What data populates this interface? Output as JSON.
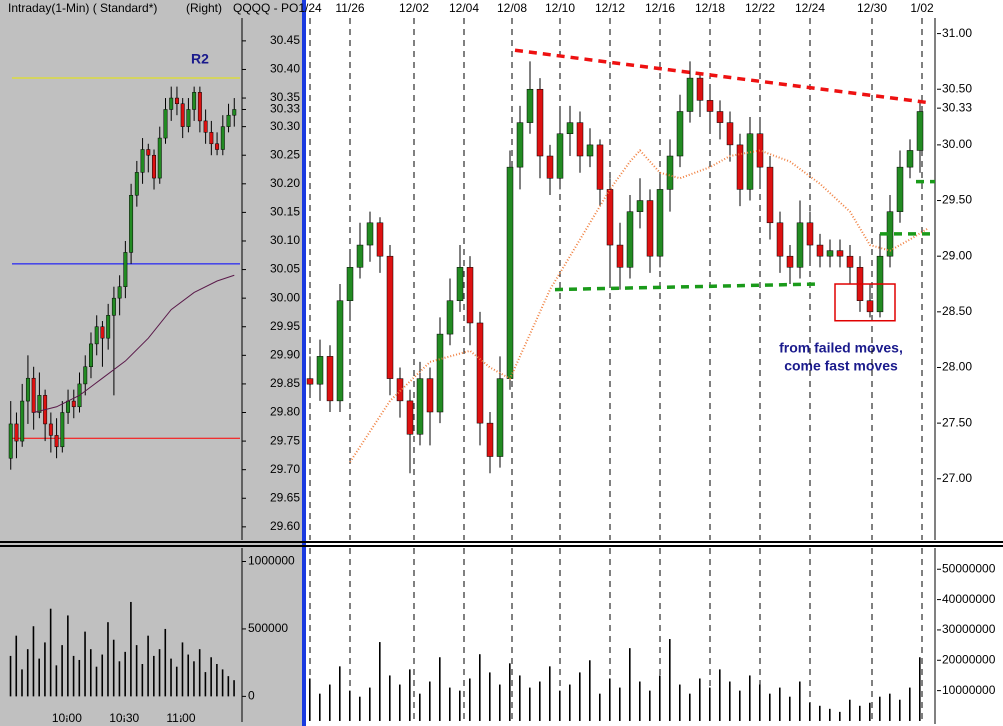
{
  "chart_data": [
    {
      "type": "candlestick",
      "header": [
        "Intraday(1-Min) ( Standard*)",
        "(Right)",
        "QQQQ - PO"
      ],
      "annotation": "R2",
      "ylim": [
        29.577,
        30.49
      ],
      "yticks": [
        30.45,
        {
          "value": 30.4,
          "label": "30.40"
        },
        30.35,
        30.33,
        {
          "value": 30.3,
          "label": "30.30"
        },
        30.25,
        {
          "value": 30.2,
          "label": "30.20"
        },
        30.15,
        {
          "value": 30.1,
          "label": "30.10"
        },
        30.05,
        {
          "value": 30.0,
          "label": "30.00"
        },
        29.95,
        {
          "value": 29.9,
          "label": "29.90"
        },
        29.85,
        {
          "value": 29.8,
          "label": "29.80"
        },
        29.75,
        {
          "value": 29.7,
          "label": "29.70"
        },
        29.65,
        {
          "value": 29.6,
          "label": "29.60"
        }
      ],
      "xlim": [
        -1,
        40
      ],
      "up_color": "#228b22",
      "down_color": "#dd1111",
      "candles": [
        [
          29.72,
          29.82,
          29.7,
          29.78
        ],
        [
          29.78,
          29.8,
          29.72,
          29.75
        ],
        [
          29.75,
          29.85,
          29.74,
          29.82
        ],
        [
          29.82,
          29.9,
          29.78,
          29.86
        ],
        [
          29.86,
          29.88,
          29.77,
          29.8
        ],
        [
          29.8,
          29.87,
          29.79,
          29.83
        ],
        [
          29.83,
          29.84,
          29.75,
          29.78
        ],
        [
          29.78,
          29.8,
          29.73,
          29.76
        ],
        [
          29.76,
          29.79,
          29.72,
          29.74
        ],
        [
          29.74,
          29.82,
          29.73,
          29.8
        ],
        [
          29.8,
          29.84,
          29.78,
          29.82
        ],
        [
          29.82,
          29.84,
          29.79,
          29.81
        ],
        [
          29.81,
          29.87,
          29.8,
          29.85
        ],
        [
          29.85,
          29.9,
          29.83,
          29.88
        ],
        [
          29.88,
          29.94,
          29.86,
          29.92
        ],
        [
          29.92,
          29.97,
          29.9,
          29.95
        ],
        [
          29.95,
          29.96,
          29.88,
          29.93
        ],
        [
          29.93,
          29.99,
          29.91,
          29.97
        ],
        [
          29.97,
          30.02,
          29.83,
          30.0
        ],
        [
          30.0,
          30.04,
          29.97,
          30.02
        ],
        [
          30.02,
          30.1,
          30.0,
          30.08
        ],
        [
          30.08,
          30.2,
          30.06,
          30.18
        ],
        [
          30.18,
          30.24,
          30.16,
          30.22
        ],
        [
          30.22,
          30.28,
          30.2,
          30.26
        ],
        [
          30.26,
          30.27,
          30.22,
          30.25
        ],
        [
          30.25,
          30.26,
          30.19,
          30.21
        ],
        [
          30.21,
          30.3,
          30.2,
          30.28
        ],
        [
          30.28,
          30.35,
          30.27,
          30.33
        ],
        [
          30.33,
          30.37,
          30.31,
          30.35
        ],
        [
          30.35,
          30.37,
          30.32,
          30.34
        ],
        [
          30.34,
          30.35,
          30.28,
          30.3
        ],
        [
          30.3,
          30.35,
          30.29,
          30.33
        ],
        [
          30.33,
          30.37,
          30.31,
          30.36
        ],
        [
          30.36,
          30.37,
          30.29,
          30.31
        ],
        [
          30.31,
          30.33,
          30.27,
          30.29
        ],
        [
          30.29,
          30.31,
          30.25,
          30.27
        ],
        [
          30.27,
          30.29,
          30.25,
          30.26
        ],
        [
          30.26,
          30.32,
          30.25,
          30.3
        ],
        [
          30.3,
          30.34,
          30.29,
          30.32
        ],
        [
          30.32,
          30.35,
          30.3,
          30.33
        ]
      ],
      "levels": [
        {
          "value": 30.385,
          "color": "#e8e800"
        },
        {
          "value": 30.06,
          "color": "#0000ff"
        },
        {
          "value": 29.755,
          "color": "#ff0000"
        }
      ],
      "lines": [
        {
          "color": "#5a1a4a",
          "style": "solid",
          "x": [
            4,
            8,
            12,
            16,
            20,
            24,
            28,
            32,
            36,
            39
          ],
          "values": [
            29.8,
            29.81,
            29.83,
            29.86,
            29.89,
            29.93,
            29.98,
            30.01,
            30.03,
            30.04
          ]
        }
      ]
    },
    {
      "type": "volume",
      "ylim": [
        -190000,
        1100000
      ],
      "yticks": [
        0,
        500000,
        1000000
      ],
      "xlim": [
        -1,
        40
      ],
      "xticks": [
        {
          "value": 9.8,
          "label": "10:00"
        },
        {
          "value": 19.8,
          "label": "10:30"
        },
        {
          "value": 29.7,
          "label": "11:00"
        }
      ],
      "color": "#000000",
      "values": [
        300000,
        450000,
        200000,
        350000,
        520000,
        280000,
        400000,
        650000,
        230000,
        380000,
        600000,
        300000,
        270000,
        480000,
        350000,
        220000,
        310000,
        550000,
        420000,
        260000,
        330000,
        700000,
        380000,
        240000,
        450000,
        300000,
        350000,
        500000,
        280000,
        220000,
        400000,
        310000,
        260000,
        350000,
        180000,
        290000,
        240000,
        200000,
        150000,
        120000
      ]
    },
    {
      "type": "candlestick",
      "annotation": [
        "from failed moves,",
        "come fast moves"
      ],
      "ylim": [
        26.45,
        31.14
      ],
      "yticks": [
        {
          "value": 31,
          "label": "31.00"
        },
        {
          "value": 30.5,
          "label": "30.50"
        },
        30.33,
        {
          "value": 30,
          "label": "30.00"
        },
        {
          "value": 29.5,
          "label": "29.50"
        },
        {
          "value": 29,
          "label": "29.00"
        },
        {
          "value": 28.5,
          "label": "28.50"
        },
        {
          "value": 28,
          "label": "28.00"
        },
        {
          "value": 27.5,
          "label": "27.50"
        },
        {
          "value": 27,
          "label": "27.00"
        }
      ],
      "xlim": [
        -0.5,
        62.5
      ],
      "xticks": [
        {
          "value": 0,
          "label": "1/24"
        },
        {
          "value": 4,
          "label": "11/26"
        },
        {
          "value": 10.4,
          "label": "12/02"
        },
        {
          "value": 15.4,
          "label": "12/04"
        },
        {
          "value": 20.2,
          "label": "12/08"
        },
        {
          "value": 25,
          "label": "12/10"
        },
        {
          "value": 30,
          "label": "12/12"
        },
        {
          "value": 35,
          "label": "12/16"
        },
        {
          "value": 40,
          "label": "12/18"
        },
        {
          "value": 45,
          "label": "12/22"
        },
        {
          "value": 50,
          "label": "12/24"
        },
        {
          "value": 56.2,
          "label": "12/30"
        },
        {
          "value": 61.2,
          "label": "1/02"
        }
      ],
      "up_color": "#228b22",
      "down_color": "#dd1111",
      "candles": [
        [
          27.9,
          28.1,
          27.75,
          27.85
        ],
        [
          27.85,
          28.25,
          27.7,
          28.1
        ],
        [
          28.1,
          28.2,
          27.6,
          27.7
        ],
        [
          27.7,
          28.75,
          27.6,
          28.6
        ],
        [
          28.6,
          29.05,
          28.45,
          28.9
        ],
        [
          28.9,
          29.3,
          28.8,
          29.1
        ],
        [
          29.1,
          29.4,
          28.95,
          29.3
        ],
        [
          29.3,
          29.35,
          28.85,
          29.0
        ],
        [
          29.0,
          29.1,
          27.75,
          27.9
        ],
        [
          27.9,
          28.0,
          27.55,
          27.7
        ],
        [
          27.7,
          27.8,
          27.05,
          27.4
        ],
        [
          27.4,
          28.05,
          27.3,
          27.9
        ],
        [
          27.9,
          28.0,
          27.3,
          27.6
        ],
        [
          27.6,
          28.45,
          27.5,
          28.3
        ],
        [
          28.3,
          28.8,
          28.2,
          28.6
        ],
        [
          28.6,
          29.1,
          28.5,
          28.9
        ],
        [
          28.9,
          29.0,
          28.2,
          28.4
        ],
        [
          28.4,
          28.5,
          27.3,
          27.5
        ],
        [
          27.5,
          27.6,
          27.05,
          27.2
        ],
        [
          27.2,
          28.1,
          27.1,
          27.9
        ],
        [
          27.9,
          29.95,
          27.8,
          29.8
        ],
        [
          29.8,
          30.35,
          29.6,
          30.2
        ],
        [
          30.2,
          30.75,
          30.1,
          30.5
        ],
        [
          30.5,
          30.6,
          29.7,
          29.9
        ],
        [
          29.9,
          30.0,
          29.55,
          29.7
        ],
        [
          29.7,
          30.3,
          29.6,
          30.1
        ],
        [
          30.1,
          30.35,
          29.9,
          30.2
        ],
        [
          30.2,
          30.3,
          29.75,
          29.9
        ],
        [
          29.9,
          30.15,
          29.8,
          30.0
        ],
        [
          30.0,
          30.05,
          29.45,
          29.6
        ],
        [
          29.6,
          29.7,
          28.75,
          29.1
        ],
        [
          29.1,
          29.3,
          28.7,
          28.9
        ],
        [
          28.9,
          29.55,
          28.8,
          29.4
        ],
        [
          29.4,
          29.7,
          29.25,
          29.5
        ],
        [
          29.5,
          29.6,
          28.85,
          29.0
        ],
        [
          29.0,
          29.75,
          28.9,
          29.6
        ],
        [
          29.6,
          30.05,
          29.4,
          29.9
        ],
        [
          29.9,
          30.45,
          29.8,
          30.3
        ],
        [
          30.3,
          30.75,
          30.2,
          30.6
        ],
        [
          30.6,
          30.65,
          30.25,
          30.4
        ],
        [
          30.4,
          30.5,
          30.15,
          30.3
        ],
        [
          30.3,
          30.4,
          30.05,
          30.2
        ],
        [
          30.2,
          30.3,
          29.85,
          30.0
        ],
        [
          30.0,
          30.1,
          29.45,
          29.6
        ],
        [
          29.6,
          30.25,
          29.5,
          30.1
        ],
        [
          30.1,
          30.2,
          29.65,
          29.8
        ],
        [
          29.8,
          29.9,
          29.15,
          29.3
        ],
        [
          29.3,
          29.4,
          28.85,
          29.0
        ],
        [
          29.0,
          29.1,
          28.75,
          28.9
        ],
        [
          28.9,
          29.5,
          28.8,
          29.3
        ],
        [
          29.3,
          29.4,
          28.95,
          29.1
        ],
        [
          29.1,
          29.2,
          28.9,
          29.0
        ],
        [
          29.0,
          29.15,
          28.9,
          29.05
        ],
        [
          29.05,
          29.15,
          28.9,
          29.0
        ],
        [
          29.0,
          29.1,
          28.75,
          28.9
        ],
        [
          28.9,
          29.0,
          28.5,
          28.6
        ],
        [
          28.6,
          28.75,
          28.45,
          28.5
        ],
        [
          28.5,
          29.2,
          28.45,
          29.0
        ],
        [
          29.0,
          29.55,
          28.9,
          29.4
        ],
        [
          29.4,
          29.95,
          29.3,
          29.8
        ],
        [
          29.8,
          30.05,
          29.7,
          29.95
        ],
        [
          29.95,
          30.4,
          29.75,
          30.3
        ]
      ],
      "lines": [
        {
          "color": "#f08040",
          "style": "dotted",
          "x": [
            4,
            8,
            12,
            14,
            16,
            18,
            20,
            24,
            28,
            30,
            32,
            33,
            35,
            37,
            40,
            42,
            45,
            48,
            51,
            54,
            56,
            58,
            60,
            61.8
          ],
          "values": [
            27.15,
            27.7,
            28.05,
            28.1,
            28.15,
            28.0,
            27.9,
            28.7,
            29.3,
            29.6,
            29.85,
            29.95,
            29.75,
            29.7,
            29.8,
            29.9,
            29.95,
            29.85,
            29.65,
            29.4,
            29.1,
            29.05,
            29.15,
            29.25
          ]
        },
        {
          "color": "#ee1111",
          "style": "dashed",
          "x": [
            20.5,
            61.8
          ],
          "values": [
            30.85,
            30.38
          ]
        },
        {
          "color": "#1a9a1a",
          "style": "dashed",
          "x": [
            24.5,
            50.8
          ],
          "values": [
            28.7,
            28.75
          ]
        },
        {
          "color": "#1a9a1a",
          "style": "dashed",
          "x": [
            60.6,
            62.5
          ],
          "values": [
            29.67,
            29.67
          ]
        },
        {
          "color": "#1a9a1a",
          "style": "dashed",
          "x": [
            57,
            62.5
          ],
          "values": [
            29.2,
            29.2
          ]
        }
      ],
      "box": {
        "color": "#e00000",
        "x": [
          52.5,
          58.5
        ],
        "values": [
          28.75,
          28.42
        ]
      }
    },
    {
      "type": "volume",
      "ylim": [
        -1000000,
        57000000
      ],
      "yticks": [
        10000000,
        20000000,
        30000000,
        40000000,
        50000000
      ],
      "xlim": [
        -0.5,
        62.5
      ],
      "color": "#000000",
      "values": [
        14000000,
        9000000,
        12000000,
        18000000,
        10000000,
        8000000,
        11000000,
        26000000,
        15000000,
        12000000,
        17000000,
        9000000,
        13000000,
        21000000,
        11000000,
        10000000,
        14000000,
        22000000,
        16000000,
        12000000,
        19000000,
        15000000,
        11000000,
        13000000,
        18000000,
        10000000,
        12000000,
        16000000,
        20000000,
        9000000,
        14000000,
        11000000,
        24000000,
        13000000,
        10000000,
        15000000,
        27000000,
        12000000,
        9000000,
        14000000,
        11000000,
        17000000,
        13000000,
        10000000,
        15000000,
        12000000,
        9000000,
        11000000,
        8000000,
        13000000,
        6000000,
        5000000,
        4000000,
        3000000,
        7000000,
        5000000,
        6000000,
        8000000,
        9000000,
        7000000,
        11000000,
        21000000
      ]
    }
  ]
}
